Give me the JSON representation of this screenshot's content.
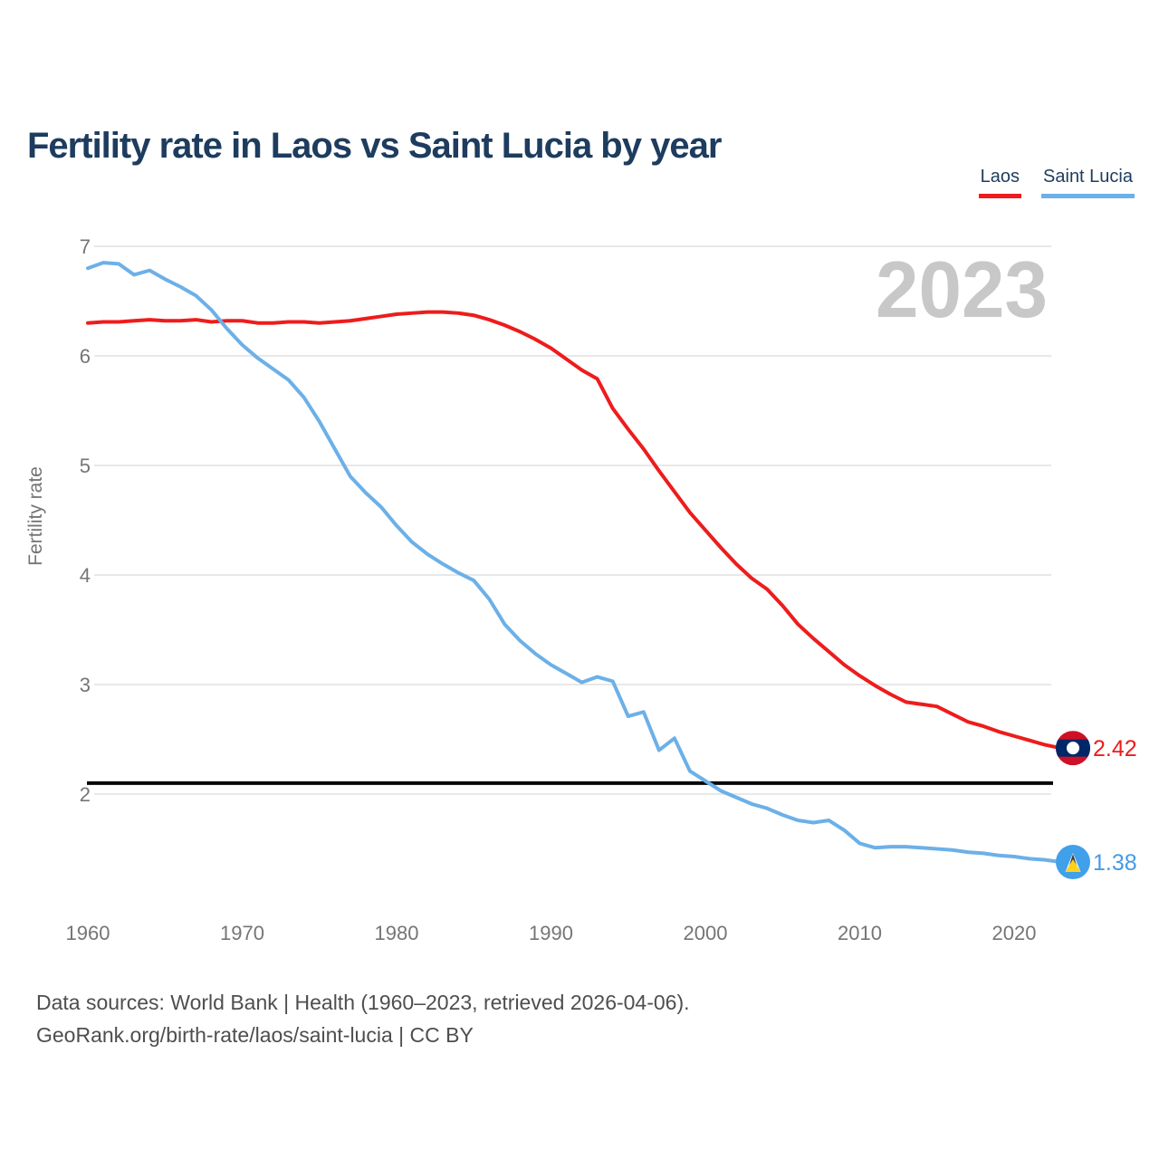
{
  "title": "Fertility rate in Laos vs Saint Lucia by year",
  "watermark": "2023",
  "legend": [
    {
      "label": "Laos",
      "color": "#ee1c1c"
    },
    {
      "label": "Saint Lucia",
      "color": "#6cb0e8"
    }
  ],
  "y_axis": {
    "label": "Fertility rate",
    "ticks": [
      7,
      6,
      5,
      4,
      3,
      2
    ]
  },
  "x_axis": {
    "ticks": [
      1960,
      1970,
      1980,
      1990,
      2000,
      2010,
      2020
    ]
  },
  "reference_line": {
    "value": 2.1,
    "color": "#060606"
  },
  "end_labels": {
    "laos": "2.42",
    "saint_lucia": "1.38"
  },
  "footer": {
    "line1": "Data sources: World Bank | Health (1960–2023, retrieved 2026-04-06).",
    "line2": "GeoRank.org/birth-rate/laos/saint-lucia | CC BY"
  },
  "chart_data": {
    "type": "line",
    "title": "Fertility rate in Laos vs Saint Lucia by year",
    "xlabel": "",
    "ylabel": "Fertility rate",
    "xlim": [
      1960,
      2023
    ],
    "ylim": [
      1.3,
      7
    ],
    "grid": "horizontal",
    "legend_position": "top-right",
    "annotations": {
      "watermark": "2023",
      "reference_line_y": 2.1
    },
    "x": [
      1960,
      1961,
      1962,
      1963,
      1964,
      1965,
      1966,
      1967,
      1968,
      1969,
      1970,
      1971,
      1972,
      1973,
      1974,
      1975,
      1976,
      1977,
      1978,
      1979,
      1980,
      1981,
      1982,
      1983,
      1984,
      1985,
      1986,
      1987,
      1988,
      1989,
      1990,
      1991,
      1992,
      1993,
      1994,
      1995,
      1996,
      1997,
      1998,
      1999,
      2000,
      2001,
      2002,
      2003,
      2004,
      2005,
      2006,
      2007,
      2008,
      2009,
      2010,
      2011,
      2012,
      2013,
      2014,
      2015,
      2016,
      2017,
      2018,
      2019,
      2020,
      2021,
      2022,
      2023
    ],
    "series": [
      {
        "name": "Laos",
        "color": "#ee1c1c",
        "end_value": 2.42,
        "values": [
          6.3,
          6.31,
          6.31,
          6.32,
          6.33,
          6.32,
          6.32,
          6.33,
          6.31,
          6.32,
          6.32,
          6.3,
          6.3,
          6.31,
          6.31,
          6.3,
          6.31,
          6.32,
          6.34,
          6.36,
          6.38,
          6.39,
          6.4,
          6.4,
          6.39,
          6.37,
          6.33,
          6.28,
          6.22,
          6.15,
          6.07,
          5.97,
          5.87,
          5.79,
          5.52,
          5.33,
          5.15,
          4.95,
          4.76,
          4.57,
          4.41,
          4.25,
          4.1,
          3.97,
          3.87,
          3.72,
          3.55,
          3.42,
          3.3,
          3.18,
          3.08,
          2.99,
          2.91,
          2.84,
          2.82,
          2.8,
          2.73,
          2.66,
          2.62,
          2.57,
          2.53,
          2.49,
          2.45,
          2.42
        ]
      },
      {
        "name": "Saint Lucia",
        "color": "#6cb0e8",
        "end_value": 1.38,
        "values": [
          6.8,
          6.85,
          6.84,
          6.74,
          6.78,
          6.7,
          6.63,
          6.55,
          6.42,
          6.25,
          6.1,
          5.98,
          5.88,
          5.78,
          5.62,
          5.4,
          5.15,
          4.9,
          4.75,
          4.62,
          4.45,
          4.3,
          4.19,
          4.1,
          4.02,
          3.95,
          3.78,
          3.55,
          3.4,
          3.28,
          3.18,
          3.1,
          3.02,
          3.07,
          3.03,
          2.71,
          2.75,
          2.4,
          2.51,
          2.21,
          2.12,
          2.03,
          1.97,
          1.91,
          1.87,
          1.81,
          1.76,
          1.74,
          1.76,
          1.67,
          1.55,
          1.51,
          1.52,
          1.52,
          1.51,
          1.5,
          1.49,
          1.47,
          1.46,
          1.44,
          1.43,
          1.41,
          1.4,
          1.38
        ]
      }
    ]
  }
}
